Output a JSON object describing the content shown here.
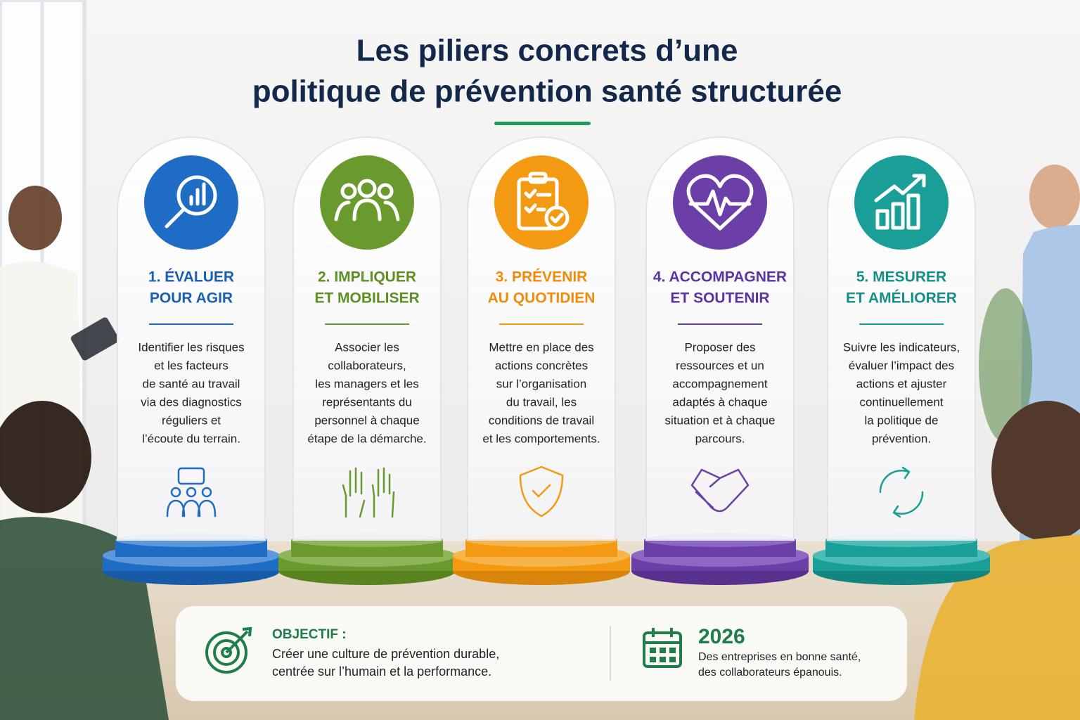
{
  "title": {
    "lines": [
      "Les piliers concrets d’une",
      "politique de prévention santé structurée"
    ]
  },
  "pillars": [
    {
      "title": [
        "1. ÉVALUER",
        "POUR AGIR"
      ],
      "text": [
        "Identifier les risques",
        "et les facteurs",
        "de santé au travail",
        "via des diagnostics",
        "réguliers et",
        "l’écoute du terrain."
      ]
    },
    {
      "title": [
        "2. IMPLIQUER",
        "ET MOBILISER"
      ],
      "text": [
        "Associer les",
        "collaborateurs,",
        "les managers et les",
        "représentants du",
        "personnel à chaque",
        "étape de la démarche."
      ]
    },
    {
      "title": [
        "3. PRÉVENIR",
        "AU QUOTIDIEN"
      ],
      "text": [
        "Mettre en place des",
        "actions concrètes",
        "sur l’organisation",
        "du travail, les",
        "conditions de travail",
        "et les comportements."
      ]
    },
    {
      "title": [
        "4. ACCOMPAGNER",
        "ET SOUTENIR"
      ],
      "text": [
        "Proposer des",
        "ressources et un",
        "accompagnement",
        "adaptés à chaque",
        "situation et à chaque",
        "parcours."
      ]
    },
    {
      "title": [
        "5. MESURER",
        "ET AMÉLIORER"
      ],
      "text": [
        "Suivre les indicateurs,",
        "évaluer l’impact des",
        "actions et ajuster",
        "continuellement",
        "la politique de",
        "prévention."
      ]
    }
  ],
  "footer": {
    "objective": {
      "label": "OBJECTIF :",
      "lines": [
        "Créer une culture de prévention durable,",
        "centrée sur l’humain et la performance."
      ]
    },
    "year": {
      "label": "2026",
      "lines": [
        "Des entreprises en bonne santé,",
        "des collaborateurs épanouis."
      ]
    }
  }
}
